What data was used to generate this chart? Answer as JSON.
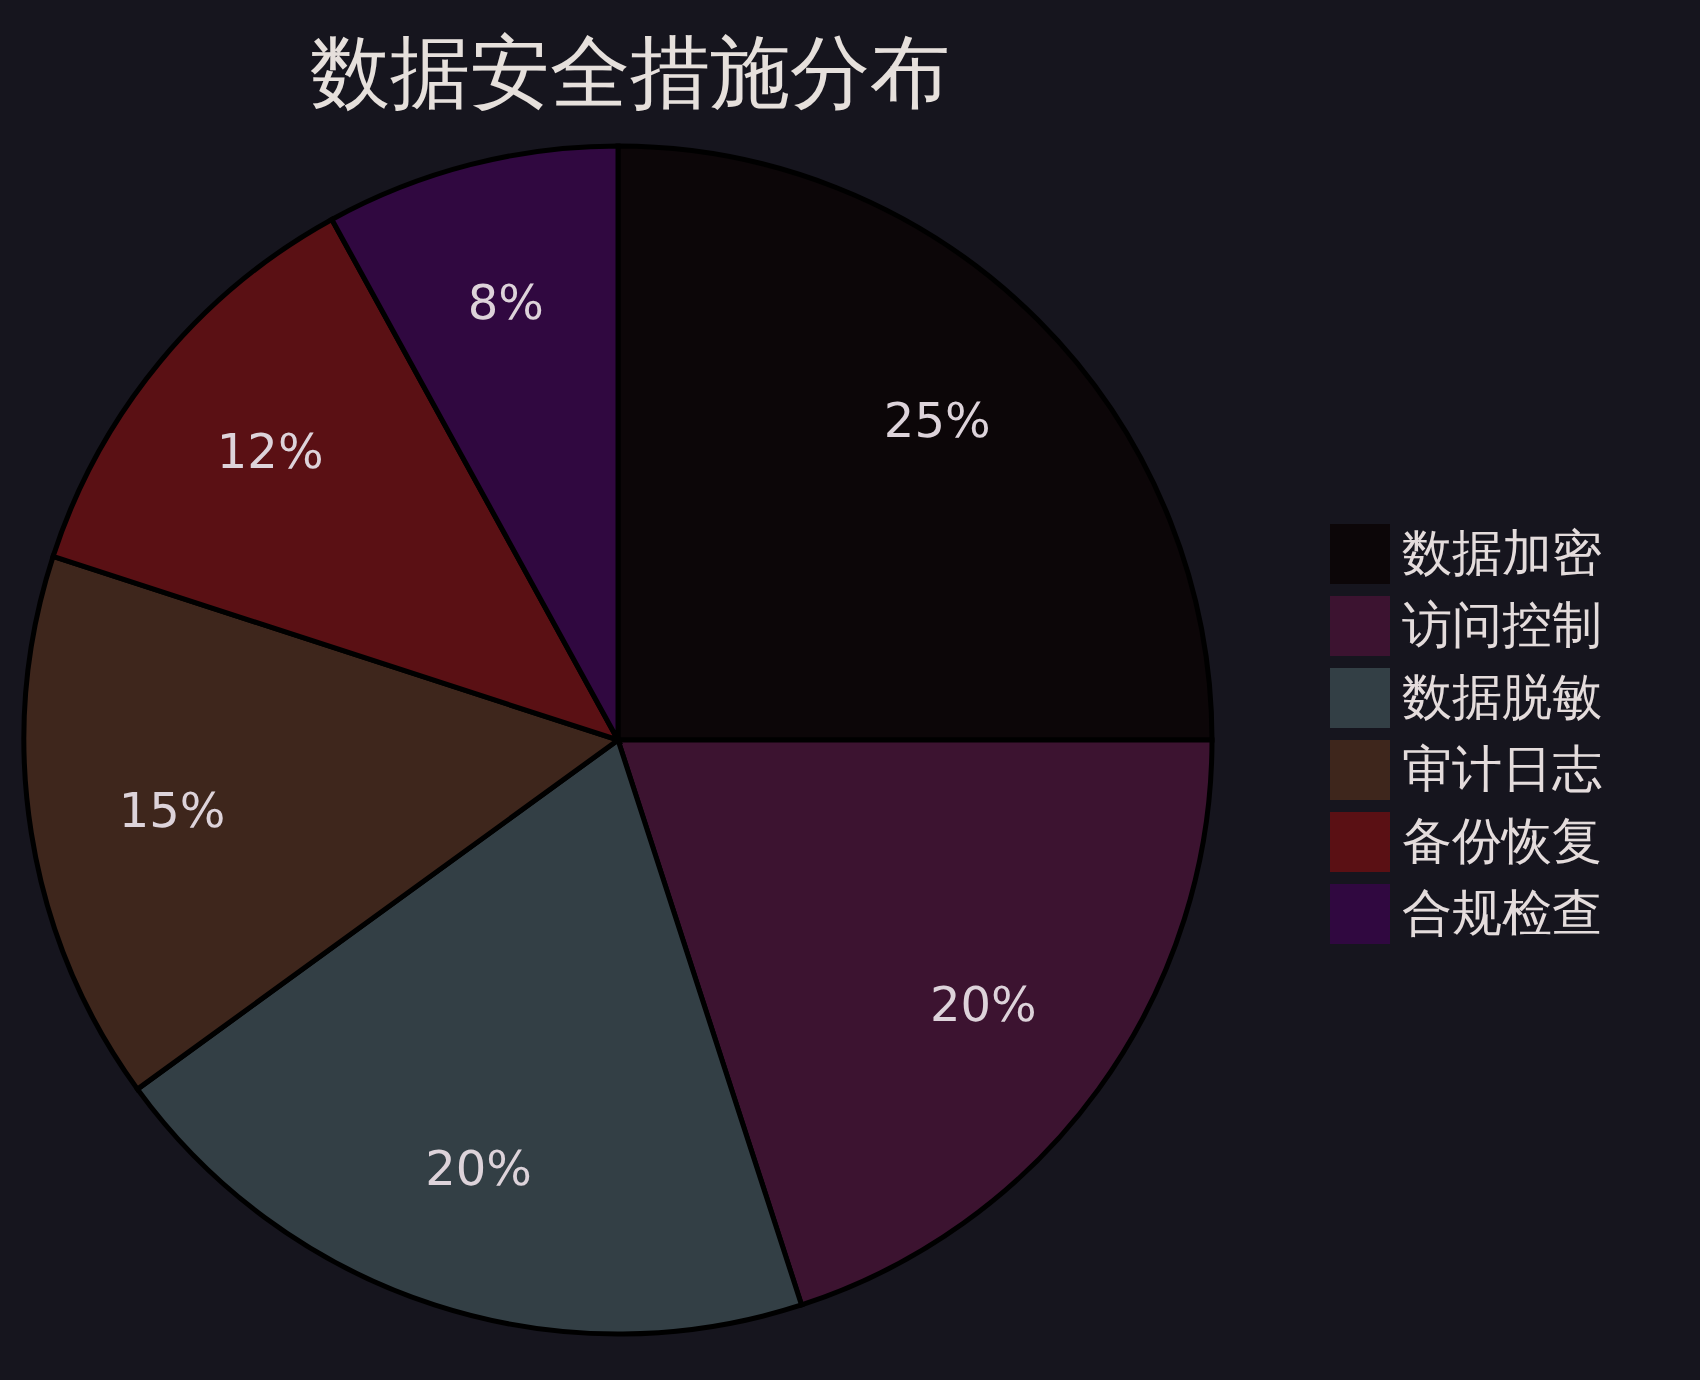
{
  "chart_data": {
    "type": "pie",
    "title": "数据安全措施分布",
    "categories": [
      "数据加密",
      "访问控制",
      "数据脱敏",
      "审计日志",
      "备份恢复",
      "合规检查"
    ],
    "values": [
      25,
      20,
      20,
      15,
      12,
      8
    ],
    "colors": [
      "#0c0608",
      "#3c1330",
      "#333f45",
      "#3e261c",
      "#5a1014",
      "#300840"
    ],
    "value_labels": [
      "25%",
      "20%",
      "20%",
      "15%",
      "12%",
      "8%"
    ],
    "legend": "right"
  }
}
